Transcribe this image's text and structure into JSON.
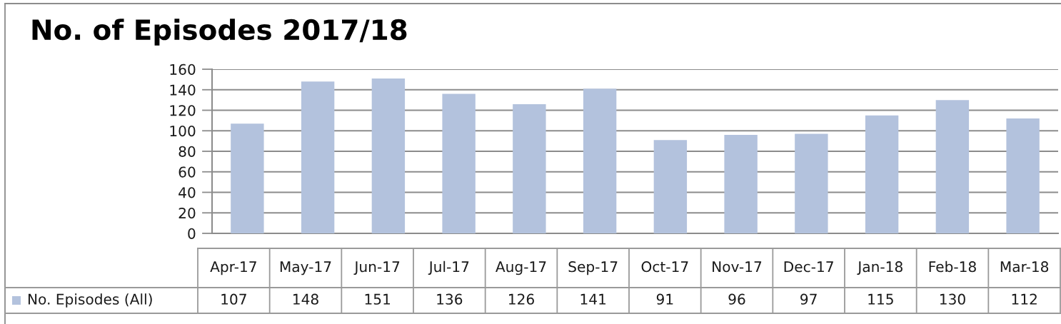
{
  "chart_data": {
    "type": "bar",
    "title": "No. of Episodes 2017/18",
    "categories": [
      "Apr-17",
      "May-17",
      "Jun-17",
      "Jul-17",
      "Aug-17",
      "Sep-17",
      "Oct-17",
      "Nov-17",
      "Dec-17",
      "Jan-18",
      "Feb-18",
      "Mar-18"
    ],
    "series": [
      {
        "name": "No. Episodes (All)",
        "color": "#b3c2dd",
        "values": [
          107,
          148,
          151,
          136,
          126,
          141,
          91,
          96,
          97,
          115,
          130,
          112
        ]
      }
    ],
    "ylim": [
      0,
      160
    ],
    "yticks": [
      0,
      20,
      40,
      60,
      80,
      100,
      120,
      140,
      160
    ],
    "grid": "y",
    "legend": "bottom left",
    "data_labels": true
  }
}
